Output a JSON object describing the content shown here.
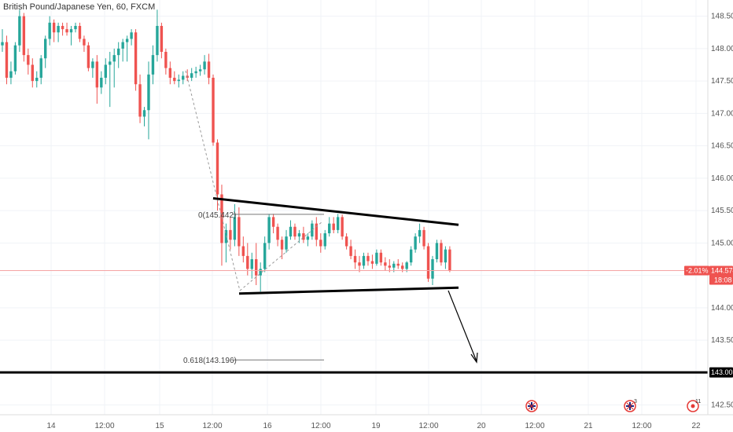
{
  "chart_data": {
    "type": "candlestick",
    "title": "British Pound/Japanese Yen, 60, FXCM",
    "colors": {
      "up": "#26a69a",
      "down": "#ef5350",
      "level": "#000000",
      "current_price_line": "#f5a3a3",
      "event_icon": "#e53935"
    },
    "y_axis": {
      "side": "right",
      "ylim": [
        142.35,
        148.75
      ],
      "tick_labels": [
        "148.500",
        "148.000",
        "147.500",
        "147.000",
        "146.500",
        "146.000",
        "145.500",
        "145.000",
        "144.500",
        "144.000",
        "143.500",
        "142.500"
      ],
      "tick_values": [
        148.5,
        148.0,
        147.5,
        147.0,
        146.5,
        146.0,
        145.5,
        145.0,
        144.5,
        144.0,
        143.5,
        142.5
      ]
    },
    "x_axis": {
      "tick_labels": [
        "14",
        "12:00",
        "15",
        "12:00",
        "16",
        "12:00",
        "19",
        "12:00",
        "20",
        "12:00",
        "21",
        "12:00",
        "22"
      ]
    },
    "current_price": {
      "value": 144.574,
      "label": "144.574",
      "change_label": "-2.01%",
      "countdown": "18:08"
    },
    "horizontal_level": {
      "value": 143.003,
      "label": "143.003"
    },
    "fibonacci": {
      "levels": [
        {
          "label": "0(145.442)",
          "value": 145.442
        },
        {
          "label": "0.618(143.196)",
          "value": 143.196
        }
      ]
    },
    "pattern": "descending triangle with projected breakdown arrow",
    "triangle": {
      "upper": [
        145.69,
        145.28
      ],
      "lower": [
        144.22,
        144.31
      ]
    },
    "event_markers": [
      {
        "icon": "uk-flag-icon",
        "count": ""
      },
      {
        "icon": "uk-flag-icon",
        "count": "3"
      },
      {
        "icon": "event-dot-icon",
        "count": "11"
      }
    ],
    "candles": [
      [
        148.05,
        148.3,
        147.95,
        148.1
      ],
      [
        148.1,
        148.2,
        147.45,
        147.55
      ],
      [
        147.55,
        147.8,
        147.45,
        147.65
      ],
      [
        147.65,
        148.1,
        147.6,
        148.05
      ],
      [
        148.05,
        148.6,
        147.95,
        148.5
      ],
      [
        148.5,
        148.55,
        147.8,
        147.9
      ],
      [
        147.9,
        148.0,
        147.6,
        147.75
      ],
      [
        147.75,
        147.85,
        147.4,
        147.5
      ],
      [
        147.5,
        147.65,
        147.4,
        147.55
      ],
      [
        147.55,
        147.9,
        147.45,
        147.85
      ],
      [
        147.85,
        148.2,
        147.7,
        148.15
      ],
      [
        148.15,
        148.5,
        148.05,
        148.4
      ],
      [
        148.4,
        148.45,
        148.1,
        148.25
      ],
      [
        148.25,
        148.4,
        148.1,
        148.35
      ],
      [
        148.35,
        148.4,
        148.2,
        148.3
      ],
      [
        148.3,
        148.4,
        148.2,
        148.25
      ],
      [
        148.25,
        148.35,
        148.05,
        148.3
      ],
      [
        148.3,
        148.4,
        148.25,
        148.35
      ],
      [
        148.35,
        148.4,
        148.1,
        148.15
      ],
      [
        148.15,
        148.2,
        147.95,
        148.05
      ],
      [
        148.05,
        148.1,
        147.65,
        147.7
      ],
      [
        147.7,
        147.85,
        147.55,
        147.8
      ],
      [
        147.8,
        147.9,
        147.15,
        147.4
      ],
      [
        147.4,
        147.65,
        147.3,
        147.55
      ],
      [
        147.55,
        147.85,
        147.45,
        147.75
      ],
      [
        147.75,
        147.95,
        147.1,
        147.8
      ],
      [
        147.8,
        148.0,
        147.4,
        147.9
      ],
      [
        147.9,
        148.1,
        147.7,
        148.0
      ],
      [
        148.0,
        148.15,
        147.8,
        148.1
      ],
      [
        148.1,
        148.2,
        147.8,
        148.15
      ],
      [
        148.15,
        148.3,
        148.05,
        148.25
      ],
      [
        148.25,
        148.3,
        147.35,
        147.45
      ],
      [
        147.45,
        147.6,
        146.85,
        146.95
      ],
      [
        146.95,
        147.1,
        146.8,
        147.05
      ],
      [
        147.05,
        147.8,
        146.6,
        147.6
      ],
      [
        147.6,
        148.05,
        147.45,
        147.9
      ],
      [
        147.9,
        148.6,
        147.8,
        148.35
      ],
      [
        148.35,
        148.4,
        147.85,
        147.95
      ],
      [
        147.95,
        148.0,
        147.6,
        147.7
      ],
      [
        147.7,
        147.8,
        147.45,
        147.55
      ],
      [
        147.55,
        147.65,
        147.45,
        147.5
      ],
      [
        147.5,
        147.6,
        147.4,
        147.52
      ],
      [
        147.52,
        147.65,
        147.45,
        147.58
      ],
      [
        147.58,
        147.68,
        147.5,
        147.55
      ],
      [
        147.55,
        147.7,
        147.5,
        147.62
      ],
      [
        147.62,
        147.72,
        147.55,
        147.65
      ],
      [
        147.65,
        147.75,
        147.58,
        147.68
      ],
      [
        147.68,
        147.9,
        147.6,
        147.8
      ],
      [
        147.8,
        147.92,
        147.45,
        147.55
      ],
      [
        147.55,
        147.6,
        146.5,
        146.55
      ],
      [
        146.55,
        146.6,
        145.5,
        145.75
      ],
      [
        145.75,
        145.9,
        144.65,
        145.0
      ],
      [
        145.0,
        145.3,
        144.7,
        145.2
      ],
      [
        145.2,
        145.4,
        144.9,
        145.05
      ],
      [
        145.05,
        145.6,
        144.95,
        145.4
      ],
      [
        145.4,
        145.55,
        144.8,
        144.95
      ],
      [
        144.95,
        145.1,
        144.7,
        144.8
      ],
      [
        144.8,
        145.0,
        144.5,
        144.6
      ],
      [
        144.6,
        144.85,
        144.45,
        144.75
      ],
      [
        144.75,
        145.0,
        144.35,
        144.5
      ],
      [
        144.5,
        144.7,
        144.25,
        144.6
      ],
      [
        144.6,
        145.1,
        144.55,
        145.0
      ],
      [
        145.0,
        145.45,
        144.9,
        145.4
      ],
      [
        145.4,
        145.45,
        145.15,
        145.25
      ],
      [
        145.25,
        145.3,
        144.95,
        145.05
      ],
      [
        145.05,
        145.1,
        144.75,
        144.9
      ],
      [
        144.9,
        145.2,
        144.85,
        145.1
      ],
      [
        145.1,
        145.35,
        145.05,
        145.25
      ],
      [
        145.25,
        145.3,
        145.05,
        145.1
      ],
      [
        145.1,
        145.2,
        145.0,
        145.15
      ],
      [
        145.15,
        145.25,
        145.0,
        145.05
      ],
      [
        145.05,
        145.15,
        144.95,
        145.1
      ],
      [
        145.1,
        145.35,
        145.05,
        145.3
      ],
      [
        145.3,
        145.4,
        144.95,
        145.05
      ],
      [
        145.05,
        145.15,
        144.85,
        144.95
      ],
      [
        144.95,
        145.2,
        144.9,
        145.15
      ],
      [
        145.15,
        145.4,
        145.1,
        145.3
      ],
      [
        145.3,
        145.4,
        145.15,
        145.2
      ],
      [
        145.2,
        145.45,
        145.15,
        145.4
      ],
      [
        145.4,
        145.44,
        145.05,
        145.1
      ],
      [
        145.1,
        145.15,
        144.9,
        144.95
      ],
      [
        144.95,
        145.05,
        144.75,
        144.8
      ],
      [
        144.8,
        144.9,
        144.6,
        144.7
      ],
      [
        144.7,
        144.8,
        144.55,
        144.65
      ],
      [
        144.65,
        144.85,
        144.6,
        144.8
      ],
      [
        144.8,
        144.85,
        144.65,
        144.72
      ],
      [
        144.72,
        144.82,
        144.6,
        144.68
      ],
      [
        144.68,
        144.9,
        144.65,
        144.85
      ],
      [
        144.85,
        144.9,
        144.65,
        144.7
      ],
      [
        144.7,
        144.78,
        144.58,
        144.65
      ],
      [
        144.65,
        144.75,
        144.55,
        144.62
      ],
      [
        144.62,
        144.72,
        144.55,
        144.68
      ],
      [
        144.68,
        144.75,
        144.6,
        144.65
      ],
      [
        144.65,
        144.7,
        144.55,
        144.6
      ],
      [
        144.6,
        144.72,
        144.55,
        144.7
      ],
      [
        144.7,
        144.95,
        144.65,
        144.9
      ],
      [
        144.9,
        145.15,
        144.85,
        145.1
      ],
      [
        145.1,
        145.3,
        145.0,
        145.2
      ],
      [
        145.2,
        145.25,
        144.9,
        144.95
      ],
      [
        144.95,
        145.0,
        144.4,
        144.45
      ],
      [
        144.45,
        144.8,
        144.35,
        144.75
      ],
      [
        144.75,
        145.05,
        144.7,
        145.0
      ],
      [
        145.0,
        145.05,
        144.65,
        144.7
      ],
      [
        144.7,
        144.95,
        144.6,
        144.9
      ],
      [
        144.9,
        144.95,
        144.55,
        144.58
      ]
    ]
  }
}
